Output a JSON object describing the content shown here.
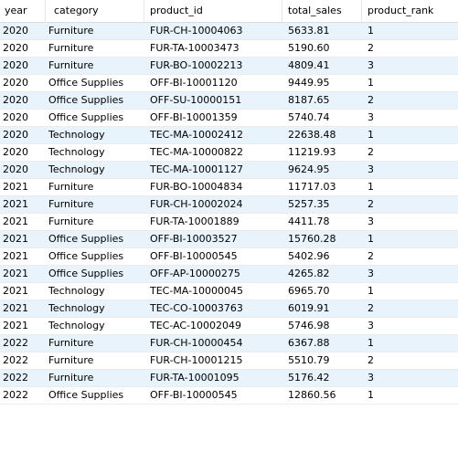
{
  "columns": [
    "year",
    "category",
    "product_id",
    "total_sales",
    "product_rank"
  ],
  "rows": [
    [
      "2020",
      "Furniture",
      "FUR-CH-10004063",
      "5633.81",
      "1"
    ],
    [
      "2020",
      "Furniture",
      "FUR-TA-10003473",
      "5190.60",
      "2"
    ],
    [
      "2020",
      "Furniture",
      "FUR-BO-10002213",
      "4809.41",
      "3"
    ],
    [
      "2020",
      "Office Supplies",
      "OFF-BI-10001120",
      "9449.95",
      "1"
    ],
    [
      "2020",
      "Office Supplies",
      "OFF-SU-10000151",
      "8187.65",
      "2"
    ],
    [
      "2020",
      "Office Supplies",
      "OFF-BI-10001359",
      "5740.74",
      "3"
    ],
    [
      "2020",
      "Technology",
      "TEC-MA-10002412",
      "22638.48",
      "1"
    ],
    [
      "2020",
      "Technology",
      "TEC-MA-10000822",
      "11219.93",
      "2"
    ],
    [
      "2020",
      "Technology",
      "TEC-MA-10001127",
      "9624.95",
      "3"
    ],
    [
      "2021",
      "Furniture",
      "FUR-BO-10004834",
      "11717.03",
      "1"
    ],
    [
      "2021",
      "Furniture",
      "FUR-CH-10002024",
      "5257.35",
      "2"
    ],
    [
      "2021",
      "Furniture",
      "FUR-TA-10001889",
      "4411.78",
      "3"
    ],
    [
      "2021",
      "Office Supplies",
      "OFF-BI-10003527",
      "15760.28",
      "1"
    ],
    [
      "2021",
      "Office Supplies",
      "OFF-BI-10000545",
      "5402.96",
      "2"
    ],
    [
      "2021",
      "Office Supplies",
      "OFF-AP-10000275",
      "4265.82",
      "3"
    ],
    [
      "2021",
      "Technology",
      "TEC-MA-10000045",
      "6965.70",
      "1"
    ],
    [
      "2021",
      "Technology",
      "TEC-CO-10003763",
      "6019.91",
      "2"
    ],
    [
      "2021",
      "Technology",
      "TEC-AC-10002049",
      "5746.98",
      "3"
    ],
    [
      "2022",
      "Furniture",
      "FUR-CH-10000454",
      "6367.88",
      "1"
    ],
    [
      "2022",
      "Furniture",
      "FUR-CH-10001215",
      "5510.79",
      "2"
    ],
    [
      "2022",
      "Furniture",
      "FUR-TA-10001095",
      "5176.42",
      "3"
    ],
    [
      "2022",
      "Office Supplies",
      "OFF-BI-10000545",
      "12860.56",
      "1"
    ]
  ]
}
